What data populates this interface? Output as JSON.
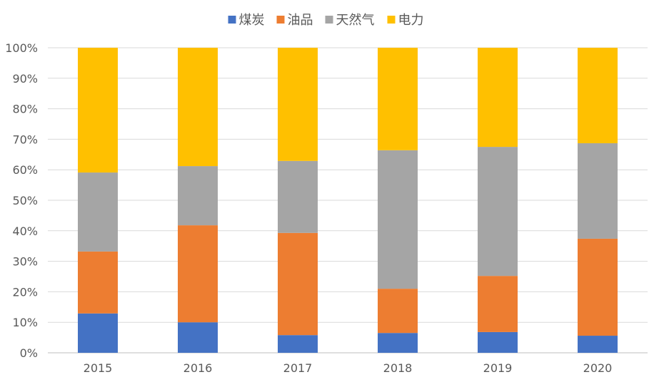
{
  "chart_data": {
    "type": "bar",
    "stacked": true,
    "percent": true,
    "title": "",
    "xlabel": "",
    "ylabel": "",
    "ylim": [
      0,
      100
    ],
    "yticks": [
      "0%",
      "10%",
      "20%",
      "30%",
      "40%",
      "50%",
      "60%",
      "70%",
      "80%",
      "90%",
      "100%"
    ],
    "grid": true,
    "legend_position": "top",
    "categories": [
      "2015",
      "2016",
      "2017",
      "2018",
      "2019",
      "2020"
    ],
    "series": [
      {
        "name": "煤炭",
        "color": "#4472C4",
        "values": [
          12.9,
          10.0,
          5.8,
          6.5,
          6.8,
          5.6
        ]
      },
      {
        "name": "油品",
        "color": "#ED7D31",
        "values": [
          20.3,
          31.8,
          33.5,
          14.5,
          18.4,
          31.8
        ]
      },
      {
        "name": "天然气",
        "color": "#A5A5A5",
        "values": [
          25.9,
          19.4,
          23.6,
          45.4,
          42.3,
          31.3
        ]
      },
      {
        "name": "电力",
        "color": "#FFC000",
        "values": [
          40.9,
          38.8,
          37.1,
          33.6,
          32.5,
          31.3
        ]
      }
    ]
  }
}
